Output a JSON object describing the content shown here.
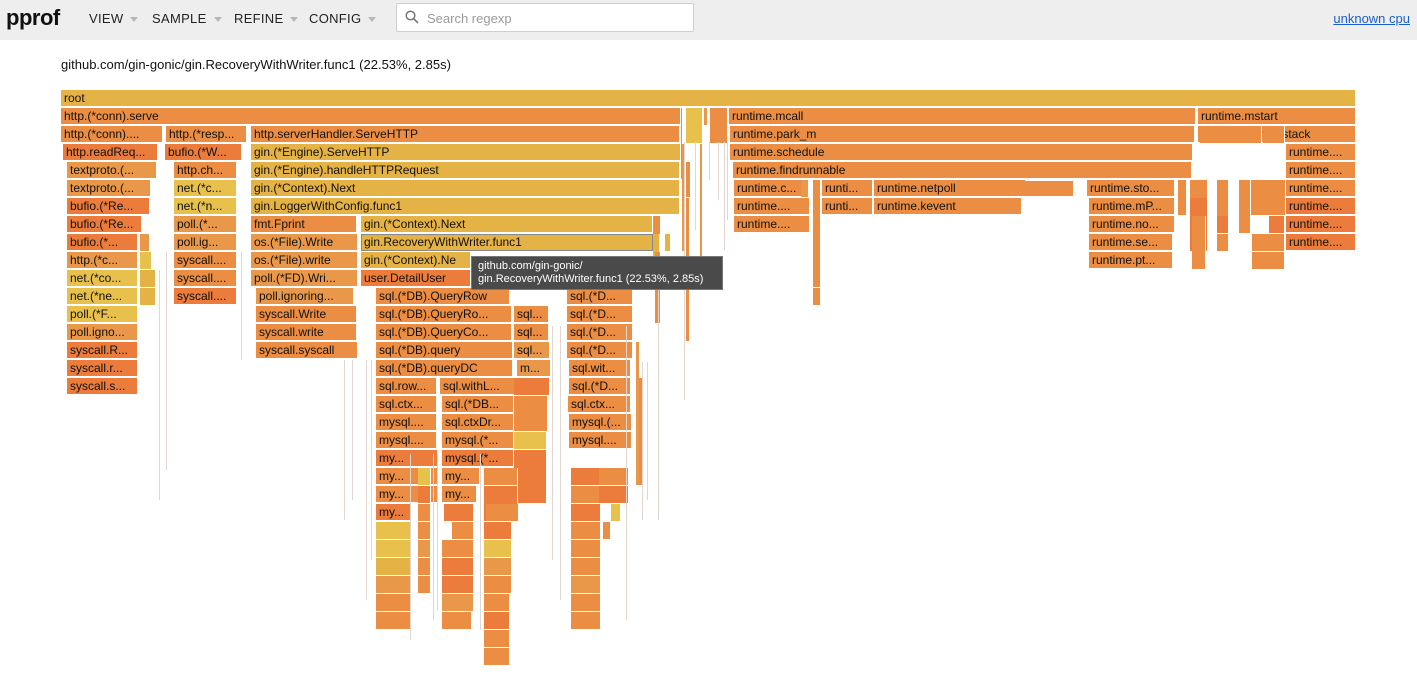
{
  "header": {
    "logo": "pprof",
    "menus": [
      "VIEW",
      "SAMPLE",
      "REFINE",
      "CONFIG"
    ],
    "search_placeholder": "Search regexp",
    "profile_link": "unknown cpu"
  },
  "selection_title": "github.com/gin-gonic/gin.RecoveryWithWriter.func1 (22.53%, 2.85s)",
  "tooltip": {
    "line1": "github.com/gin-gonic/",
    "line2": "gin.RecoveryWithWriter.func1 (22.53%, 2.85s)"
  },
  "colors": {
    "header_bg": "#eeeeee",
    "link": "#1a5fd0",
    "frame_palette": [
      "#e5b246",
      "#eb8d42",
      "#e89848",
      "#ec7c3c",
      "#e8c14c",
      "#ed9a48"
    ]
  },
  "flame": [
    [
      "root",
      0,
      0
    ],
    [
      "http.(*conn).serve",
      1,
      1
    ],
    [
      "runtime.mcall",
      1,
      1
    ],
    [
      "runtime.mstart",
      1,
      1
    ],
    [
      "http.(*conn)....",
      2,
      1
    ],
    [
      "http.(*resp...",
      2,
      1
    ],
    [
      "http.serverHandler.ServeHTTP",
      2,
      1
    ],
    [
      "runtime.park_m",
      2,
      1
    ],
    [
      "runtime.systemstack",
      2,
      1
    ],
    [
      "http.readReq...",
      3,
      3
    ],
    [
      "bufio.(*W...",
      3,
      3
    ],
    [
      "gin.(*Engine).ServeHTTP",
      3,
      0
    ],
    [
      "runtime.schedule",
      3,
      1
    ],
    [
      "runtime....",
      3,
      1
    ],
    [
      "textproto.(...",
      4,
      2
    ],
    [
      "http.ch...",
      4,
      1
    ],
    [
      "gin.(*Engine).handleHTTPRequest",
      4,
      0
    ],
    [
      "runtime.findrunnable",
      4,
      1
    ],
    [
      "runtime....",
      4,
      1
    ],
    [
      "textproto.(...",
      5,
      2
    ],
    [
      "net.(*c...",
      5,
      4
    ],
    [
      "gin.(*Context).Next",
      5,
      0
    ],
    [
      "runtime.c...",
      5,
      1
    ],
    [
      "runti...",
      5,
      1
    ],
    [
      "runtime.netpoll",
      5,
      1
    ],
    [
      "runtime.sto...",
      5,
      1
    ],
    [
      "runtime....",
      5,
      1
    ],
    [
      "bufio.(*Re...",
      6,
      3
    ],
    [
      "net.(*n...",
      6,
      4
    ],
    [
      "gin.LoggerWithConfig.func1",
      6,
      0
    ],
    [
      "runtime....",
      6,
      1
    ],
    [
      "runti...",
      6,
      1
    ],
    [
      "runtime.kevent",
      6,
      1
    ],
    [
      "runtime.mP...",
      6,
      1
    ],
    [
      "runtime....",
      6,
      3
    ],
    [
      "bufio.(*Re...",
      7,
      3
    ],
    [
      "poll.(*...",
      7,
      2
    ],
    [
      "fmt.Fprint",
      7,
      1
    ],
    [
      "gin.(*Context).Next",
      7,
      0
    ],
    [
      "runtime....",
      7,
      1
    ],
    [
      "runtime.no...",
      7,
      1
    ],
    [
      "runtime....",
      7,
      3
    ],
    [
      "bufio.(*...",
      8,
      3
    ],
    [
      "poll.ig...",
      8,
      2
    ],
    [
      "os.(*File).Write",
      8,
      2
    ],
    [
      "gin.RecoveryWithWriter.func1",
      8,
      0
    ],
    [
      "runtime.se...",
      8,
      1
    ],
    [
      "runtime....",
      8,
      3
    ],
    [
      "http.(*c...",
      9,
      2
    ],
    [
      "syscall....",
      9,
      1
    ],
    [
      "os.(*File).write",
      9,
      2
    ],
    [
      "gin.(*Context).Ne",
      9,
      0
    ],
    [
      "runtime.pt...",
      9,
      1
    ],
    [
      "net.(*co...",
      10,
      4
    ],
    [
      "syscall....",
      10,
      1
    ],
    [
      "poll.(*FD).Wri...",
      10,
      2
    ],
    [
      "user.DetailUser",
      10,
      3
    ],
    [
      "net.(*ne...",
      11,
      4
    ],
    [
      "syscall....",
      11,
      3
    ],
    [
      "poll.ignoring...",
      11,
      2
    ],
    [
      "sql.(*DB).QueryRow",
      11,
      1
    ],
    [
      "sql.(*D...",
      11,
      1
    ],
    [
      "poll.(*F...",
      12,
      4
    ],
    [
      "syscall.Write",
      12,
      1
    ],
    [
      "sql.(*DB).QueryRo...",
      12,
      1
    ],
    [
      "sql...",
      12,
      1
    ],
    [
      "sql.(*D...",
      12,
      1
    ],
    [
      "poll.igno...",
      13,
      2
    ],
    [
      "syscall.write",
      13,
      1
    ],
    [
      "sql.(*DB).QueryCo...",
      13,
      1
    ],
    [
      "sql...",
      13,
      1
    ],
    [
      "sql.(*D...",
      13,
      1
    ],
    [
      "syscall.R...",
      14,
      3
    ],
    [
      "syscall.syscall",
      14,
      1
    ],
    [
      "sql.(*DB).query",
      14,
      1
    ],
    [
      "sql...",
      14,
      2
    ],
    [
      "sql.(*D...",
      14,
      1
    ],
    [
      "syscall.r...",
      15,
      3
    ],
    [
      "sql.(*DB).queryDC",
      15,
      1
    ],
    [
      "m...",
      15,
      2
    ],
    [
      "sql.wit...",
      15,
      1
    ],
    [
      "syscall.s...",
      16,
      3
    ],
    [
      "sql.row...",
      16,
      1
    ],
    [
      "sql.withL...",
      16,
      1
    ],
    [
      "sql.(*D...",
      16,
      1
    ],
    [
      "sql.ctx...",
      17,
      1
    ],
    [
      "sql.(*DB...",
      17,
      1
    ],
    [
      "sql.ctx...",
      17,
      1
    ],
    [
      "mysql....",
      18,
      1
    ],
    [
      "sql.ctxDr...",
      18,
      1
    ],
    [
      "mysql.(...",
      18,
      1
    ],
    [
      "mysql....",
      19,
      1
    ],
    [
      "mysql.(*...",
      19,
      1
    ],
    [
      "mysql....",
      19,
      1
    ],
    [
      "my...",
      20,
      3
    ],
    [
      "mysql.(*...",
      20,
      3
    ],
    [
      "my...",
      21,
      1
    ],
    [
      "my...",
      21,
      1
    ],
    [
      "my...",
      22,
      1
    ],
    [
      "my...",
      22,
      1
    ],
    [
      "my...",
      23,
      3
    ]
  ]
}
